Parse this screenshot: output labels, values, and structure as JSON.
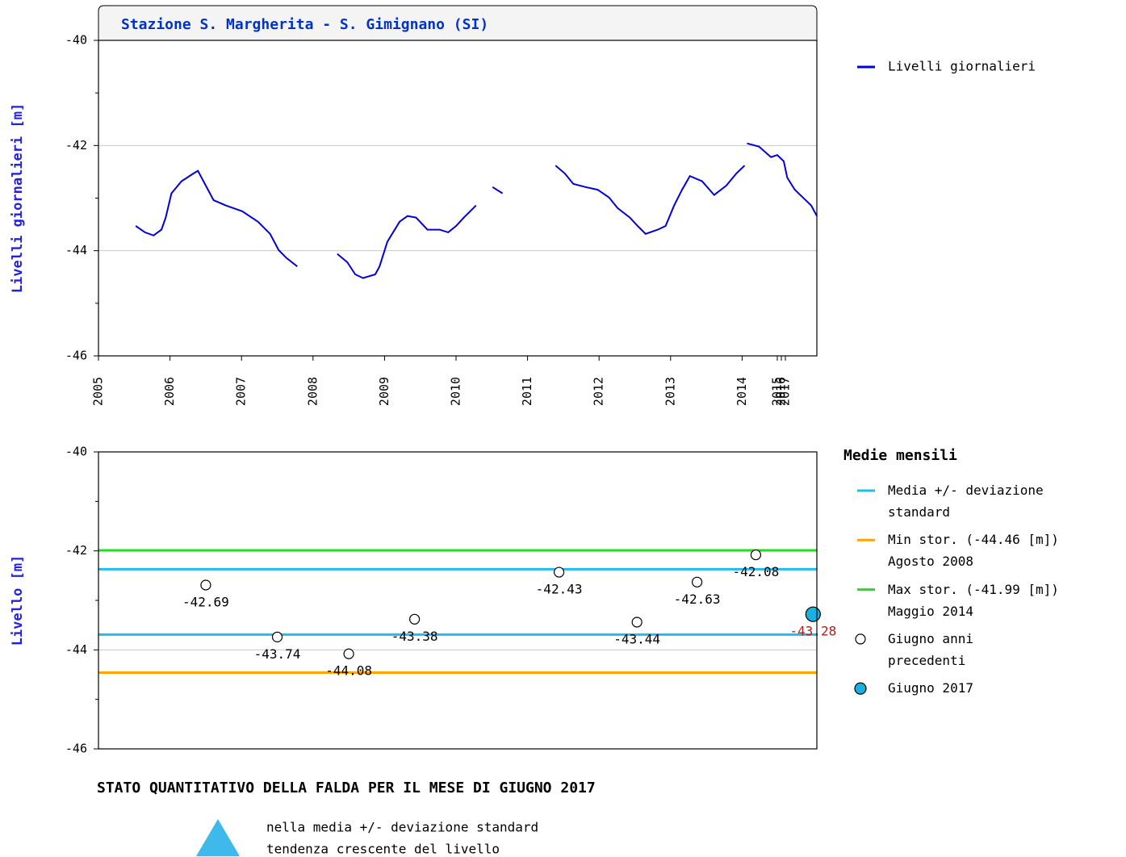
{
  "chart_data": [
    {
      "type": "line",
      "title": "Stazione S. Margherita - S. Gimignano (SI)",
      "ylabel": "Livelli giornalieri [m]",
      "xlim": [
        2005,
        2017.5
      ],
      "xticks": [
        2005,
        2006,
        2007,
        2008,
        2009,
        2010,
        2011,
        2012,
        2013,
        2014,
        2015,
        2016,
        2017
      ],
      "ylim": [
        -46,
        -40
      ],
      "yticks": [
        -46,
        -44,
        -42,
        -40
      ],
      "grid": true,
      "series": [
        {
          "name": "Livelli giornalieri",
          "color": "#0000dd",
          "x": [
            2005.52,
            2005.65,
            2005.77,
            2005.88,
            2005.94,
            2006.02,
            2006.16,
            2006.33,
            2006.39,
            2006.5,
            2006.61,
            2006.78,
            2007.01,
            2007.23,
            2007.4,
            2007.52,
            2007.63,
            2007.78,
            null,
            2008.34,
            2008.48,
            2008.59,
            2008.7,
            2008.87,
            2008.93,
            2009.04,
            2009.21,
            2009.32,
            2009.44,
            2009.6,
            2009.77,
            2009.89,
            2010.0,
            2010.11,
            2010.28,
            null,
            2010.51,
            2010.65,
            null,
            2011.39,
            2011.52,
            2011.64,
            2011.81,
            2011.98,
            2012.14,
            2012.26,
            2012.43,
            2012.54,
            2012.65,
            2012.82,
            2012.93,
            2013.05,
            2013.16,
            2013.27,
            2013.44,
            2013.61,
            2013.78,
            2013.92,
            2014.07,
            null,
            2014.14,
            2014.48,
            2014.82,
            2015.0,
            2016.6,
            2017.03,
            2017.15,
            2017.28,
            2017.41,
            2017.5
          ],
          "values": [
            -43.53,
            -43.65,
            -43.71,
            -43.6,
            -43.37,
            -42.91,
            -42.68,
            -42.53,
            -42.48,
            -42.76,
            -43.04,
            -43.14,
            -43.25,
            -43.45,
            -43.68,
            -43.99,
            -44.14,
            -44.3,
            null,
            -44.06,
            -44.22,
            -44.45,
            -44.52,
            -44.45,
            -44.3,
            -43.83,
            -43.45,
            -43.34,
            -43.37,
            -43.6,
            -43.6,
            -43.65,
            -43.53,
            -43.37,
            -43.14,
            null,
            -42.79,
            -42.91,
            null,
            -42.38,
            -42.53,
            -42.73,
            -42.79,
            -42.84,
            -42.99,
            -43.19,
            -43.37,
            -43.53,
            -43.68,
            -43.6,
            -43.53,
            -43.14,
            -42.84,
            -42.58,
            -42.68,
            -42.94,
            -42.76,
            -42.53,
            -42.38,
            null,
            -41.96,
            -42.02,
            -42.22,
            -42.18,
            -42.3,
            -42.61,
            -42.84,
            -42.99,
            -43.14,
            -43.34
          ]
        }
      ]
    },
    {
      "type": "scatter",
      "ylabel": "Livello [m]",
      "ylim": [
        -46,
        -40
      ],
      "yticks": [
        -46,
        -44,
        -42,
        -40
      ],
      "grid": true,
      "legend_title": "Medie mensili",
      "lines": [
        {
          "name": "Media +/- deviazione\nstandard",
          "color": "#22bbee",
          "values": [
            -42.37,
            -43.69
          ]
        },
        {
          "name": "Min stor. (-44.46 [m])\nAgosto 2008",
          "color": "#ffa500",
          "values": [
            -44.46
          ]
        },
        {
          "name": "Max stor. (-41.99 [m])\nMaggio 2014",
          "color": "#22dd22",
          "values": [
            -41.99
          ]
        }
      ],
      "series": [
        {
          "name": "Giugno anni\nprecedenti",
          "color": "#ffffff",
          "label_color": "#000000",
          "x": [
            2006.5,
            2007.5,
            2008.5,
            2009.42,
            2011.44,
            2012.53,
            2013.37,
            2014.39
          ],
          "values": [
            -42.69,
            -43.74,
            -44.08,
            -43.38,
            -42.43,
            -43.44,
            -42.63,
            -42.08
          ]
        },
        {
          "name": "Giugno 2017",
          "color": "#1ab0e0",
          "label_color": "#aa2222",
          "x": [
            2017.44
          ],
          "values": [
            -43.28
          ]
        }
      ]
    }
  ],
  "status": {
    "title": "STATO QUANTITATIVO DELLA FALDA PER IL MESE DI GIUGNO 2017",
    "lines": [
      "nella media +/- deviazione standard",
      "tendenza crescente del livello"
    ]
  }
}
